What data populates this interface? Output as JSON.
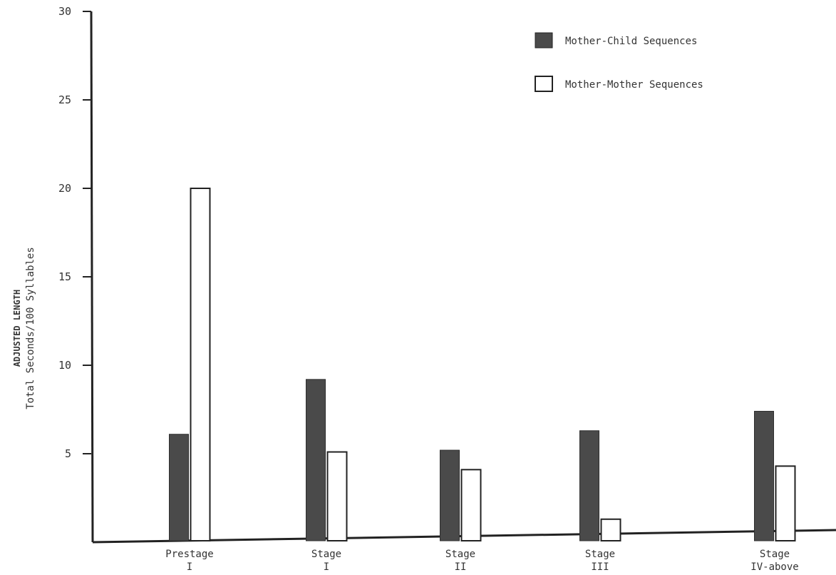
{
  "chart_data": {
    "type": "bar",
    "title": "",
    "xlabel": "",
    "ylabel_lines": [
      "ADJUSTED LENGTH",
      "Total Seconds/100 Syllables"
    ],
    "ylim": [
      0,
      30
    ],
    "yticks": [
      5,
      10,
      15,
      20,
      25,
      30
    ],
    "categories": [
      {
        "line1": "Prestage",
        "line2": "I"
      },
      {
        "line1": "Stage",
        "line2": "I"
      },
      {
        "line1": "Stage",
        "line2": "II"
      },
      {
        "line1": "Stage",
        "line2": "III"
      },
      {
        "line1": "Stage",
        "line2": "IV-above"
      }
    ],
    "series": [
      {
        "name": "Mother-Child Sequences",
        "fill": "#4a4a4a",
        "values": [
          6.1,
          9.2,
          5.2,
          6.3,
          7.4
        ]
      },
      {
        "name": "Mother-Mother Sequences",
        "fill": "#ffffff",
        "values": [
          20.0,
          5.1,
          4.1,
          1.3,
          4.3
        ]
      }
    ],
    "legend": {
      "position": "top-right"
    },
    "grid": false
  }
}
